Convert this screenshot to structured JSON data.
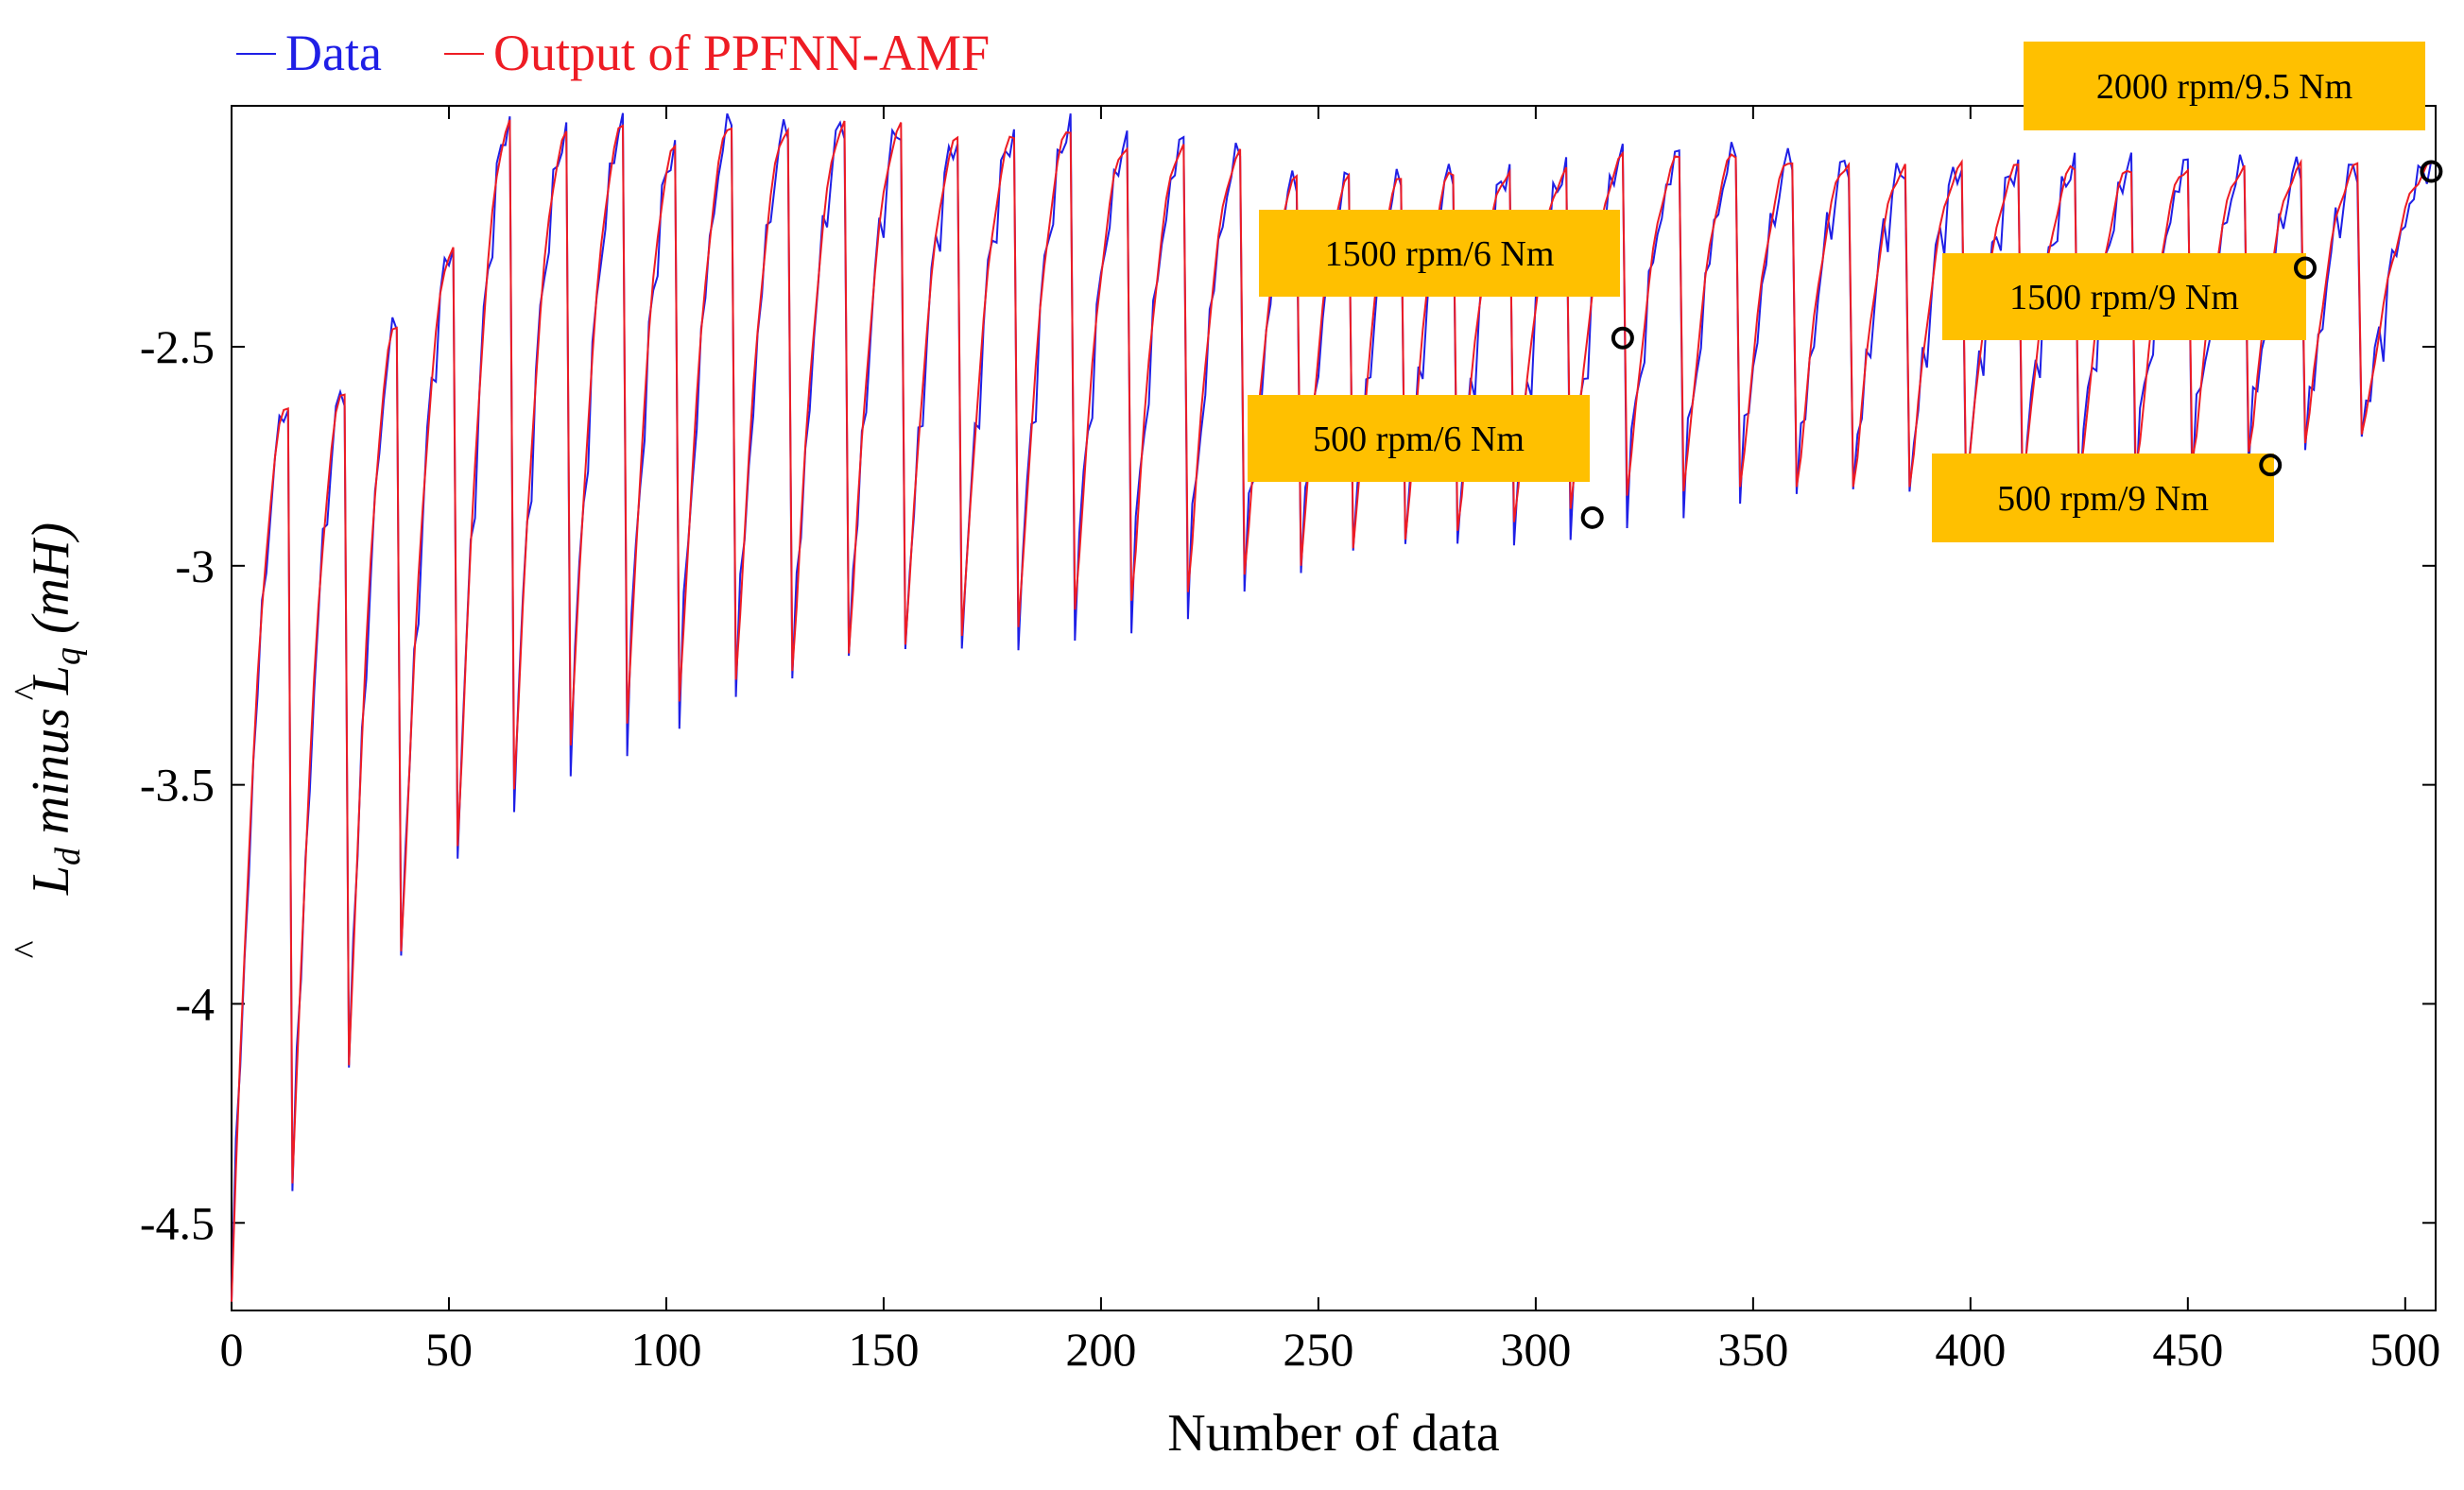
{
  "chart_data": {
    "type": "line",
    "title": "",
    "xlabel": "Number of data",
    "ylabel": {
      "prefix": "L",
      "d_sub": "d",
      "middle": " minus ",
      "q_sub": "q",
      "suffix": " (mH)"
    },
    "xlim": [
      0,
      507
    ],
    "ylim": [
      -4.7,
      -1.95
    ],
    "x_ticks": [
      0,
      50,
      100,
      150,
      200,
      250,
      300,
      350,
      400,
      450,
      500
    ],
    "x_tick_labels": [
      "0",
      "50",
      "100",
      "150",
      "200",
      "250",
      "300",
      "350",
      "400",
      "450",
      "500"
    ],
    "y_ticks": [
      -2.5,
      -3,
      -3.5,
      -4,
      -4.5
    ],
    "y_tick_labels": [
      "-2.5",
      "-3",
      "-3.5",
      "-4",
      "-4.5"
    ],
    "legend": {
      "position": "top-left-outside",
      "entries": [
        {
          "label": "Data",
          "color": "#1f1fe6"
        },
        {
          "label": "Output of PPFNN-AMF",
          "color": "#ee1c24"
        }
      ]
    },
    "series_description": "Sawtooth dataset of 507 samples in repeated cycles; each cycle starts low and rises to a peak. Early cycles swing widely (down to about -4.45), later cycles settle between about -2.87 and -2.05.",
    "cycles": [
      {
        "start": 0,
        "end": 14,
        "min": -4.68,
        "peak": -2.63
      },
      {
        "start": 14,
        "end": 27,
        "min": -4.45,
        "peak": -2.6
      },
      {
        "start": 27,
        "end": 39,
        "min": -4.18,
        "peak": -2.45
      },
      {
        "start": 39,
        "end": 52,
        "min": -3.92,
        "peak": -2.27
      },
      {
        "start": 52,
        "end": 65,
        "min": -3.68,
        "peak": -1.99
      },
      {
        "start": 65,
        "end": 78,
        "min": -3.55,
        "peak": -2.02
      },
      {
        "start": 78,
        "end": 91,
        "min": -3.45,
        "peak": -2.0
      },
      {
        "start": 91,
        "end": 103,
        "min": -3.4,
        "peak": -2.05
      },
      {
        "start": 103,
        "end": 116,
        "min": -3.35,
        "peak": -1.99
      },
      {
        "start": 116,
        "end": 129,
        "min": -3.3,
        "peak": -2.0
      },
      {
        "start": 129,
        "end": 142,
        "min": -3.28,
        "peak": -1.99
      },
      {
        "start": 142,
        "end": 155,
        "min": -3.24,
        "peak": -2.0
      },
      {
        "start": 155,
        "end": 168,
        "min": -3.22,
        "peak": -2.03
      },
      {
        "start": 168,
        "end": 181,
        "min": -3.2,
        "peak": -2.02
      },
      {
        "start": 181,
        "end": 194,
        "min": -3.18,
        "peak": -2.0
      },
      {
        "start": 194,
        "end": 207,
        "min": -3.14,
        "peak": -2.04
      },
      {
        "start": 207,
        "end": 220,
        "min": -3.12,
        "peak": -2.04
      },
      {
        "start": 220,
        "end": 233,
        "min": -3.1,
        "peak": -2.06
      },
      {
        "start": 233,
        "end": 246,
        "min": -3.06,
        "peak": -2.12
      },
      {
        "start": 246,
        "end": 258,
        "min": -3.04,
        "peak": -2.12
      },
      {
        "start": 258,
        "end": 270,
        "min": -3.0,
        "peak": -2.12
      },
      {
        "start": 270,
        "end": 282,
        "min": -2.98,
        "peak": -2.1
      },
      {
        "start": 282,
        "end": 295,
        "min": -2.96,
        "peak": -2.1
      },
      {
        "start": 295,
        "end": 308,
        "min": -2.94,
        "peak": -2.1
      },
      {
        "start": 308,
        "end": 321,
        "min": -2.91,
        "peak": -2.07
      },
      {
        "start": 321,
        "end": 334,
        "min": -2.88,
        "peak": -2.07
      },
      {
        "start": 334,
        "end": 347,
        "min": -2.87,
        "peak": -2.06
      },
      {
        "start": 347,
        "end": 360,
        "min": -2.86,
        "peak": -2.07
      },
      {
        "start": 360,
        "end": 373,
        "min": -2.86,
        "peak": -2.08
      },
      {
        "start": 373,
        "end": 386,
        "min": -2.86,
        "peak": -2.09
      },
      {
        "start": 386,
        "end": 399,
        "min": -2.86,
        "peak": -2.09
      },
      {
        "start": 399,
        "end": 412,
        "min": -2.86,
        "peak": -2.09
      },
      {
        "start": 412,
        "end": 425,
        "min": -2.86,
        "peak": -2.09
      },
      {
        "start": 425,
        "end": 438,
        "min": -2.85,
        "peak": -2.09
      },
      {
        "start": 438,
        "end": 451,
        "min": -2.82,
        "peak": -2.09
      },
      {
        "start": 451,
        "end": 464,
        "min": -2.8,
        "peak": -2.09
      },
      {
        "start": 464,
        "end": 477,
        "min": -2.78,
        "peak": -2.09
      },
      {
        "start": 477,
        "end": 490,
        "min": -2.76,
        "peak": -2.09
      },
      {
        "start": 490,
        "end": 507,
        "min": -2.74,
        "peak": -2.09
      }
    ],
    "annotations": [
      {
        "text": "1500 rpm/6 Nm",
        "marker_x": 320,
        "marker_y": -2.48
      },
      {
        "text": "500 rpm/6 Nm",
        "marker_x": 313,
        "marker_y": -2.89
      },
      {
        "text": "2000 rpm/9.5 Nm",
        "marker_x": 506,
        "marker_y": -2.1
      },
      {
        "text": "1500 rpm/9 Nm",
        "marker_x": 477,
        "marker_y": -2.32
      },
      {
        "text": "500 rpm/9 Nm",
        "marker_x": 469,
        "marker_y": -2.77
      }
    ],
    "annotation_box_color": "#ffc000"
  }
}
